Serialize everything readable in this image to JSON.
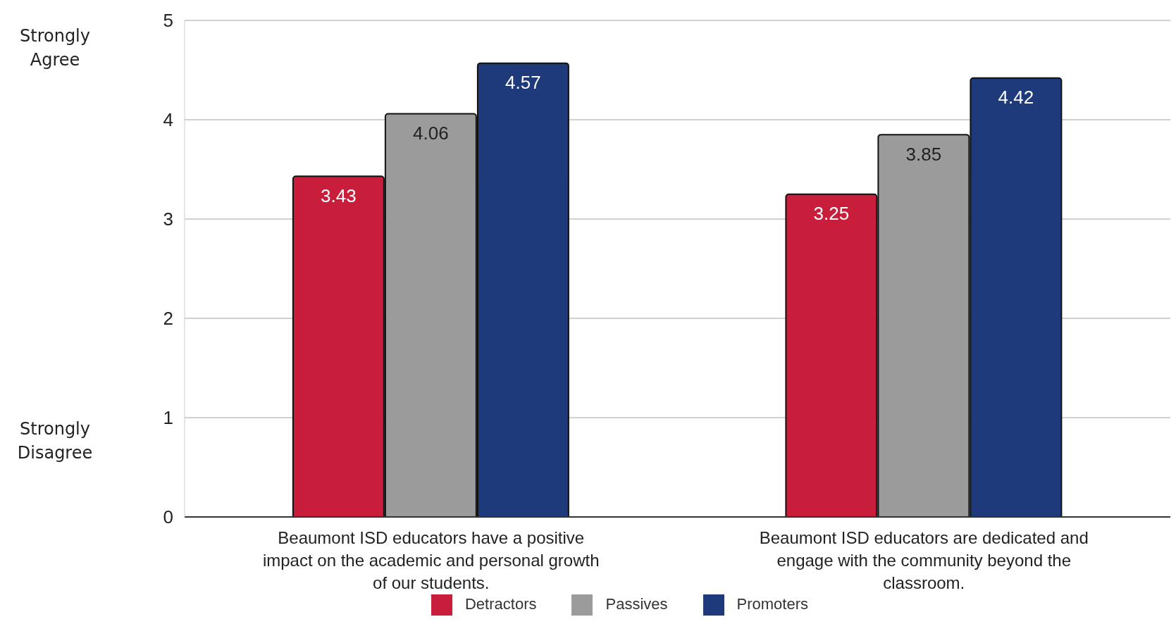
{
  "chart_data": {
    "type": "bar",
    "categories": [
      "Beaumont ISD educators have a positive impact on the academic and personal growth of our students.",
      "Beaumont ISD educators are dedicated and engage with the community beyond the classroom."
    ],
    "series": [
      {
        "name": "Detractors",
        "color": "#c81e3c",
        "values": [
          3.43,
          3.25
        ]
      },
      {
        "name": "Passives",
        "color": "#9b9b9b",
        "values": [
          4.06,
          3.85
        ]
      },
      {
        "name": "Promoters",
        "color": "#1f3a7a",
        "values": [
          4.57,
          4.42
        ]
      }
    ],
    "ylim": [
      0,
      5
    ],
    "yticks": [
      0,
      1,
      2,
      3,
      4,
      5
    ],
    "grid": "y",
    "legend": "bottom",
    "data_labels": true,
    "annotations": [
      "Strongly Agree",
      "Strongly Disagree"
    ]
  }
}
